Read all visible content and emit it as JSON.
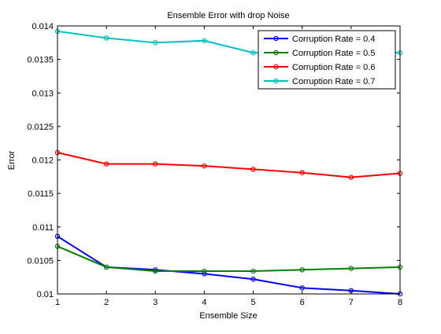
{
  "chart_data": {
    "type": "line",
    "title": "Ensemble Error with drop Noise",
    "xlabel": "Ensemble Size",
    "ylabel": "Error",
    "xlim": [
      1,
      8
    ],
    "ylim": [
      0.01,
      0.014
    ],
    "xticks": [
      1,
      2,
      3,
      4,
      5,
      6,
      7,
      8
    ],
    "xtick_labels": [
      "1",
      "2",
      "3",
      "4",
      "5",
      "6",
      "7",
      "8"
    ],
    "yticks": [
      0.01,
      0.0105,
      0.011,
      0.0115,
      0.012,
      0.0125,
      0.013,
      0.0135,
      0.014
    ],
    "ytick_labels": [
      "0.01",
      "0.0105",
      "0.011",
      "0.0115",
      "0.012",
      "0.0125",
      "0.013",
      "0.0135",
      "0.014"
    ],
    "grid": false,
    "legend_position": "top-right",
    "x": [
      1,
      2,
      3,
      4,
      5,
      6,
      7,
      8
    ],
    "series": [
      {
        "name": "Corruption Rate = 0.4",
        "color": "#0000ff",
        "values": [
          0.01086,
          0.0104,
          0.01036,
          0.0103,
          0.01022,
          0.01009,
          0.01005,
          0.01
        ]
      },
      {
        "name": "Corruption Rate = 0.5",
        "color": "#007f00",
        "values": [
          0.01071,
          0.0104,
          0.01034,
          0.01034,
          0.01034,
          0.01036,
          0.01038,
          0.0104
        ]
      },
      {
        "name": "Corruption Rate = 0.6",
        "color": "#ff0000",
        "values": [
          0.01211,
          0.01194,
          0.01194,
          0.01191,
          0.01186,
          0.01181,
          0.01174,
          0.0118
        ]
      },
      {
        "name": "Corruption Rate = 0.7",
        "color": "#00bfbf",
        "values": [
          0.01392,
          0.01382,
          0.01375,
          0.01378,
          0.0136,
          0.0136,
          0.0136,
          0.0136
        ]
      }
    ]
  }
}
